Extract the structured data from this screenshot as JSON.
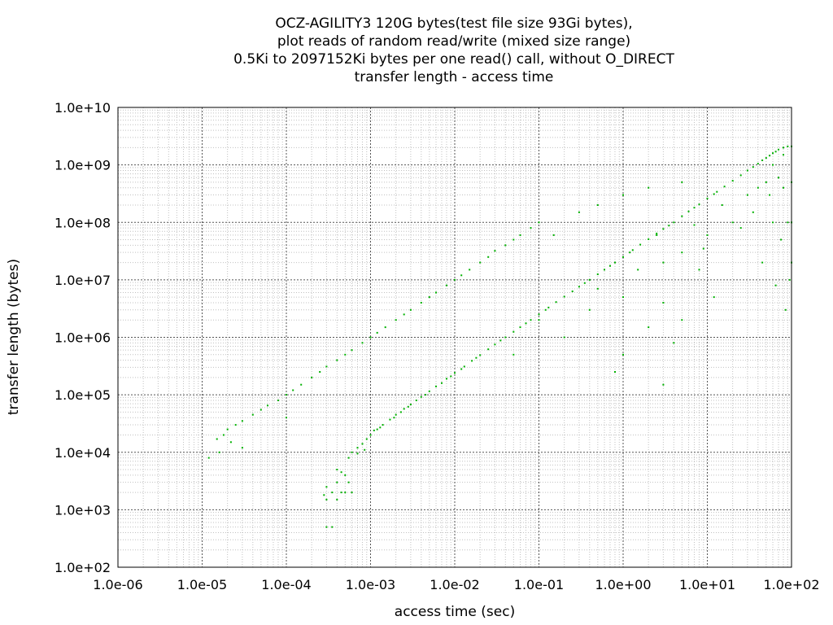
{
  "chart_data": {
    "type": "scatter",
    "title_lines": [
      "OCZ-AGILITY3 120G bytes(test file size 93Gi bytes),",
      "plot reads of random read/write (mixed size range)",
      "0.5Ki to 2097152Ki bytes per one read() call, without O_DIRECT",
      "transfer length - access time"
    ],
    "xlabel": "access time (sec)",
    "ylabel": "transfer length (bytes)",
    "x_scale": "log",
    "y_scale": "log",
    "xlim": [
      1e-06,
      100
    ],
    "ylim": [
      100,
      10000000000.0
    ],
    "x_ticks": [
      1e-06,
      1e-05,
      0.0001,
      0.001,
      0.01,
      0.1,
      1,
      10,
      100
    ],
    "x_tick_labels": [
      "1.0e-06",
      "1.0e-05",
      "1.0e-04",
      "1.0e-03",
      "1.0e-02",
      "1.0e-01",
      "1.0e+00",
      "1.0e+01",
      "1.0e+02"
    ],
    "y_ticks": [
      100,
      1000,
      10000,
      100000,
      1000000,
      10000000,
      100000000,
      1000000000,
      10000000000
    ],
    "y_tick_labels": [
      "1.0e+02",
      "1.0e+03",
      "1.0e+04",
      "1.0e+05",
      "1.0e+06",
      "1.0e+07",
      "1.0e+08",
      "1.0e+09",
      "1.0e+10"
    ],
    "grid": true,
    "minor_grid": true,
    "legend": "none",
    "point_color": "#00b000",
    "series": [
      {
        "points": [
          [
            0.00055,
            8000
          ],
          [
            0.0006,
            10000
          ],
          [
            0.0007,
            12000
          ],
          [
            0.0008,
            14000
          ],
          [
            0.0009,
            17000
          ],
          [
            0.001,
            20000
          ],
          [
            0.0012,
            25000
          ],
          [
            0.0014,
            30000
          ],
          [
            0.0017,
            37000
          ],
          [
            0.002,
            45000
          ],
          [
            0.0025,
            57000
          ],
          [
            0.003,
            68000
          ],
          [
            0.0035,
            80000
          ],
          [
            0.004,
            92000
          ],
          [
            0.005,
            115000
          ],
          [
            0.006,
            140000
          ],
          [
            0.008,
            190000
          ],
          [
            0.01,
            240000
          ],
          [
            0.013,
            310000
          ],
          [
            0.016,
            390000
          ],
          [
            0.02,
            490000
          ],
          [
            0.025,
            620000
          ],
          [
            0.03,
            750000
          ],
          [
            0.04,
            1000000
          ],
          [
            0.05,
            1250000
          ],
          [
            0.06,
            1500000
          ],
          [
            0.08,
            2000000
          ],
          [
            0.1,
            2500000
          ],
          [
            0.13,
            3300000
          ],
          [
            0.16,
            4100000
          ],
          [
            0.2,
            5100000
          ],
          [
            0.25,
            6300000
          ],
          [
            0.3,
            7600000
          ],
          [
            0.4,
            10000000
          ],
          [
            0.5,
            12500000
          ],
          [
            0.6,
            15000000
          ],
          [
            0.8,
            20000000
          ],
          [
            1,
            25000000
          ],
          [
            1.3,
            33000000
          ],
          [
            1.6,
            41000000
          ],
          [
            2,
            51000000
          ],
          [
            2.5,
            64000000
          ],
          [
            3,
            77000000
          ],
          [
            4,
            100000000
          ],
          [
            5,
            128000000
          ],
          [
            6,
            155000000
          ],
          [
            8,
            205000000
          ],
          [
            10,
            260000000
          ],
          [
            13,
            340000000
          ],
          [
            16,
            420000000
          ],
          [
            20,
            530000000
          ],
          [
            25,
            660000000
          ],
          [
            30,
            800000000
          ],
          [
            40,
            1050000000
          ],
          [
            50,
            1320000000
          ],
          [
            60,
            1600000000
          ],
          [
            70,
            1850000000
          ],
          [
            80,
            2000000000
          ],
          [
            90,
            2100000000
          ],
          [
            100,
            2100000000
          ],
          [
            0.0007,
            9500
          ],
          [
            0.00085,
            11000
          ],
          [
            0.0011,
            24000
          ],
          [
            0.0013,
            27000
          ],
          [
            0.0019,
            40000
          ],
          [
            0.0023,
            50000
          ],
          [
            0.0028,
            62000
          ],
          [
            0.0045,
            100000
          ],
          [
            0.007,
            160000
          ],
          [
            0.009,
            210000
          ],
          [
            0.012,
            280000
          ],
          [
            0.018,
            440000
          ],
          [
            0.035,
            880000
          ],
          [
            0.07,
            1750000
          ],
          [
            0.12,
            3000000
          ],
          [
            0.35,
            8800000
          ],
          [
            0.7,
            17500000
          ],
          [
            1.2,
            30000000
          ],
          [
            3.5,
            88000000
          ],
          [
            7,
            180000000
          ],
          [
            12,
            310000000
          ],
          [
            35,
            920000000
          ],
          [
            45,
            1200000000
          ],
          [
            55,
            1450000000
          ],
          [
            65,
            1700000000
          ]
        ]
      },
      {
        "points": [
          [
            1.5e-05,
            17000
          ],
          [
            1.8e-05,
            20000
          ],
          [
            2e-05,
            25000
          ],
          [
            2.5e-05,
            30000
          ],
          [
            3e-05,
            35000
          ],
          [
            4e-05,
            45000
          ],
          [
            5e-05,
            55000
          ],
          [
            6e-05,
            65000
          ],
          [
            8e-05,
            80000
          ],
          [
            0.0001,
            100000
          ],
          [
            0.00012,
            120000
          ],
          [
            0.00015,
            150000
          ],
          [
            0.0002,
            200000
          ],
          [
            0.00025,
            250000
          ],
          [
            0.0003,
            310000
          ],
          [
            0.0004,
            400000
          ],
          [
            0.0005,
            500000
          ],
          [
            0.0006,
            600000
          ],
          [
            0.0008,
            800000
          ],
          [
            0.001,
            1000000
          ],
          [
            0.0012,
            1200000
          ],
          [
            0.0015,
            1500000
          ],
          [
            0.002,
            2000000
          ],
          [
            0.0025,
            2500000
          ],
          [
            0.003,
            3000000
          ],
          [
            0.004,
            4000000
          ],
          [
            0.005,
            5000000
          ],
          [
            0.006,
            6000000
          ],
          [
            0.008,
            8000000
          ],
          [
            0.01,
            10000000
          ],
          [
            0.012,
            12000000
          ],
          [
            0.015,
            15000000
          ],
          [
            0.02,
            20000000
          ],
          [
            0.025,
            25000000
          ],
          [
            0.03,
            32000000
          ],
          [
            0.04,
            40000000
          ],
          [
            0.05,
            50000000
          ],
          [
            0.06,
            60000000
          ],
          [
            0.08,
            80000000
          ],
          [
            0.1,
            100000000
          ],
          [
            0.3,
            150000000
          ],
          [
            0.5,
            200000000
          ],
          [
            1,
            300000000
          ],
          [
            2,
            400000000
          ],
          [
            5,
            500000000
          ]
        ]
      },
      {
        "points": [
          [
            0.0003,
            1500
          ],
          [
            0.0003,
            2500
          ],
          [
            0.00035,
            2000
          ],
          [
            0.0004,
            3000
          ],
          [
            0.00045,
            2000
          ],
          [
            0.0005,
            2000
          ],
          [
            0.0005,
            4000
          ],
          [
            0.00055,
            3000
          ],
          [
            0.0006,
            2000
          ],
          [
            0.0004,
            5000
          ],
          [
            0.0003,
            500
          ],
          [
            0.00035,
            500
          ],
          [
            0.0004,
            1500
          ],
          [
            0.00028,
            1800
          ],
          [
            0.00045,
            4500
          ],
          [
            1.2e-05,
            8000
          ],
          [
            1.6e-05,
            10000
          ],
          [
            2.2e-05,
            15000
          ],
          [
            3e-05,
            12000
          ],
          [
            0.0001,
            40000
          ],
          [
            0.2,
            1000000
          ],
          [
            0.4,
            3000000
          ],
          [
            0.5,
            7000000
          ],
          [
            1,
            5000000
          ],
          [
            2,
            1500000
          ],
          [
            3,
            20000000
          ],
          [
            3,
            4000000
          ],
          [
            4,
            800000
          ],
          [
            5,
            30000000
          ],
          [
            5,
            2000000
          ],
          [
            8,
            15000000
          ],
          [
            10,
            60000000
          ],
          [
            12,
            5000000
          ],
          [
            15,
            200000000
          ],
          [
            20,
            100000000
          ],
          [
            25,
            80000000
          ],
          [
            30,
            300000000
          ],
          [
            35,
            150000000
          ],
          [
            40,
            400000000
          ],
          [
            45,
            20000000
          ],
          [
            50,
            500000000
          ],
          [
            55,
            300000000
          ],
          [
            60,
            100000000
          ],
          [
            70,
            600000000
          ],
          [
            80,
            400000000
          ],
          [
            90,
            100000000
          ],
          [
            100,
            500000000
          ],
          [
            95,
            10000000
          ],
          [
            85,
            3000000
          ],
          [
            75,
            50000000
          ],
          [
            65,
            8000000
          ],
          [
            100,
            100000000
          ],
          [
            100,
            20000000
          ],
          [
            60,
            1000000000
          ],
          [
            80,
            1500000000
          ],
          [
            1,
            500000
          ],
          [
            3,
            150000
          ],
          [
            0.8,
            250000
          ],
          [
            0.05,
            500000
          ],
          [
            0.1,
            2000000
          ],
          [
            1.5,
            15000000
          ],
          [
            2.5,
            60000000
          ],
          [
            7,
            90000000
          ],
          [
            9,
            35000000
          ],
          [
            0.15,
            60000000
          ]
        ]
      }
    ]
  }
}
